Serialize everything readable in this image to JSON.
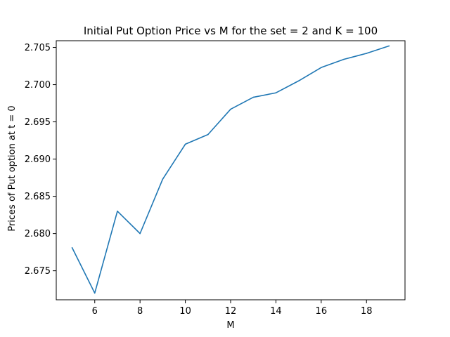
{
  "chart_data": {
    "type": "line",
    "title": "Initial Put Option Price vs M for the set = 2 and K = 100",
    "xlabel": "M",
    "ylabel": "Prices of Put option at t = 0",
    "xlim": [
      4.3,
      19.7
    ],
    "ylim": [
      2.6711,
      2.7059
    ],
    "x_ticks": [
      6,
      8,
      10,
      12,
      14,
      16,
      18
    ],
    "x_tick_labels": [
      "6",
      "8",
      "10",
      "12",
      "14",
      "16",
      "18"
    ],
    "y_ticks": [
      2.675,
      2.68,
      2.685,
      2.69,
      2.695,
      2.7,
      2.705
    ],
    "y_tick_labels": [
      "2.675",
      "2.680",
      "2.685",
      "2.690",
      "2.695",
      "2.700",
      "2.705"
    ],
    "grid": false,
    "series": [
      {
        "color": "#1f77b4",
        "x": [
          5,
          6,
          7,
          8,
          9,
          10,
          11,
          12,
          13,
          14,
          15,
          16,
          17,
          18,
          19
        ],
        "values": [
          2.6781,
          2.672,
          2.683,
          2.68,
          2.6873,
          2.692,
          2.6933,
          2.6967,
          2.6983,
          2.6989,
          2.7005,
          2.7023,
          2.7034,
          2.7042,
          2.7052
        ]
      }
    ]
  }
}
